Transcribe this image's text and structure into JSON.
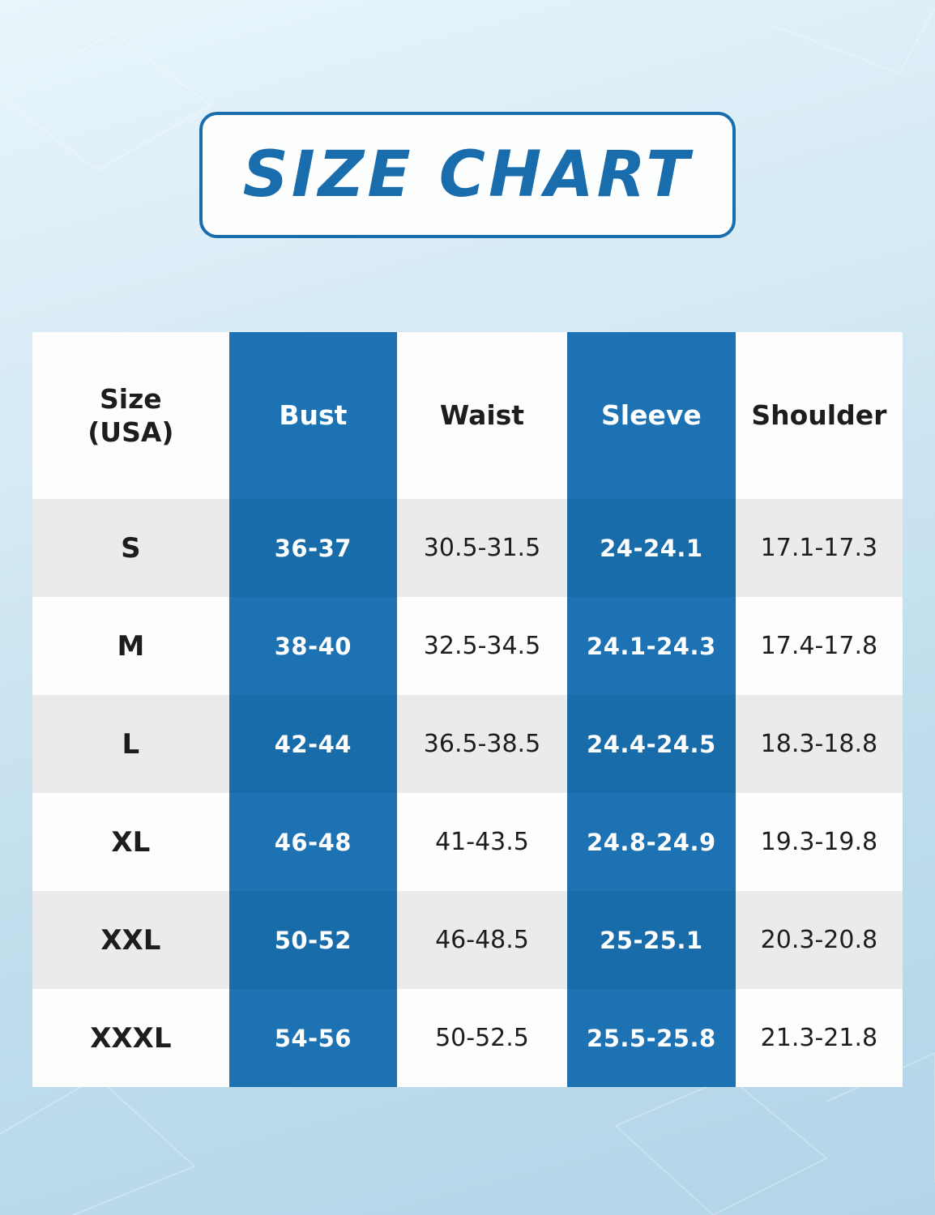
{
  "title": "SIZE CHART",
  "colors": {
    "accent": "#1a6dad",
    "col_blue": "#1c72b3",
    "col_blue_alt": "#196caa",
    "row_white": "#fdfdfd",
    "row_gray": "#ebebeb",
    "text_dark": "#1d1d1f",
    "text_on_blue": "#ffffff"
  },
  "chart_data": {
    "type": "table",
    "title": "SIZE CHART",
    "columns": [
      "Size\n(USA)",
      "Bust",
      "Waist",
      "Sleeve",
      "Shoulder"
    ],
    "highlighted_columns": [
      "Bust",
      "Sleeve"
    ],
    "rows": [
      [
        "S",
        "36-37",
        "30.5-31.5",
        "24-24.1",
        "17.1-17.3"
      ],
      [
        "M",
        "38-40",
        "32.5-34.5",
        "24.1-24.3",
        "17.4-17.8"
      ],
      [
        "L",
        "42-44",
        "36.5-38.5",
        "24.4-24.5",
        "18.3-18.8"
      ],
      [
        "XL",
        "46-48",
        "41-43.5",
        "24.8-24.9",
        "19.3-19.8"
      ],
      [
        "XXL",
        "50-52",
        "46-48.5",
        "25-25.1",
        "20.3-20.8"
      ],
      [
        "XXXL",
        "54-56",
        "50-52.5",
        "25.5-25.8",
        "21.3-21.8"
      ]
    ]
  }
}
